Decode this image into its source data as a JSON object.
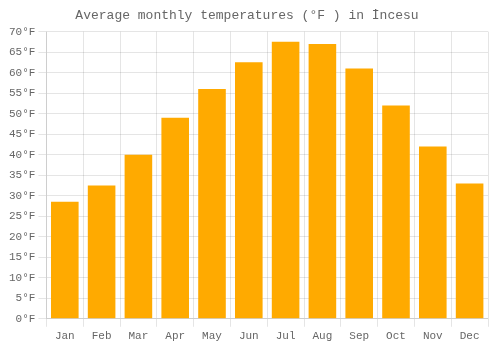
{
  "chart_data": {
    "type": "bar",
    "title": "Average monthly temperatures (°F ) in İncesu",
    "categories": [
      "Jan",
      "Feb",
      "Mar",
      "Apr",
      "May",
      "Jun",
      "Jul",
      "Aug",
      "Sep",
      "Oct",
      "Nov",
      "Dec"
    ],
    "values": [
      28.5,
      32.5,
      40.0,
      49.0,
      56.0,
      62.5,
      67.5,
      67.0,
      61.0,
      52.0,
      42.0,
      33.0
    ],
    "color": "#FFAA00",
    "ylim": [
      0,
      70
    ],
    "yticks": [
      {
        "value": 0,
        "label": "0°F"
      },
      {
        "value": 5,
        "label": "5°F"
      },
      {
        "value": 10,
        "label": "10°F"
      },
      {
        "value": 15,
        "label": "15°F"
      },
      {
        "value": 20,
        "label": "20°F"
      },
      {
        "value": 25,
        "label": "25°F"
      },
      {
        "value": 30,
        "label": "30°F"
      },
      {
        "value": 35,
        "label": "35°F"
      },
      {
        "value": 40,
        "label": "40°F"
      },
      {
        "value": 45,
        "label": "45°F"
      },
      {
        "value": 50,
        "label": "50°F"
      },
      {
        "value": 55,
        "label": "55°F"
      },
      {
        "value": 60,
        "label": "60°F"
      },
      {
        "value": 65,
        "label": "65°F"
      },
      {
        "value": 70,
        "label": "70°F"
      }
    ],
    "grid": true
  }
}
